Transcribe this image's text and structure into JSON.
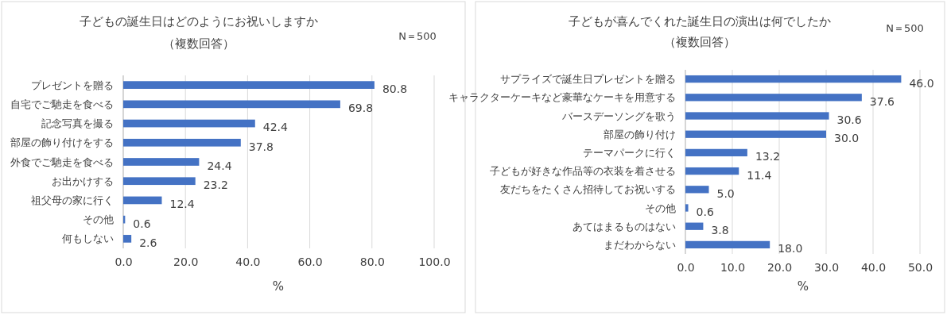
{
  "chart_data": [
    {
      "type": "bar",
      "orientation": "horizontal",
      "title": "子どもの誕生日はどのようにお祝いしますか",
      "subtitle": "（複数回答）",
      "xlabel": "%",
      "annotations": [
        "N＝500"
      ],
      "categories": [
        "プレゼントを贈る",
        "自宅でご馳走を食べる",
        "記念写真を撮る",
        "部屋の飾り付けをする",
        "外食でご馳走を食べる",
        "お出かけする",
        "祖父母の家に行く",
        "その他",
        "何もしない"
      ],
      "values": [
        80.8,
        69.8,
        42.4,
        37.8,
        24.4,
        23.2,
        12.4,
        0.6,
        2.6
      ],
      "value_labels": [
        "80.8",
        "69.8",
        "42.4",
        "37.8",
        "24.4",
        "23.2",
        "12.4",
        "0.6",
        "2.6"
      ],
      "color": "#4472c4",
      "xlim": [
        0,
        100
      ],
      "xticks": [
        {
          "value": 0,
          "label": "0.0"
        },
        {
          "value": 20,
          "label": "20.0"
        },
        {
          "value": 40,
          "label": "40.0"
        },
        {
          "value": 60,
          "label": "60.0"
        },
        {
          "value": 80,
          "label": "80.0"
        },
        {
          "value": 100,
          "label": "100.0"
        }
      ],
      "grid": "x"
    },
    {
      "type": "bar",
      "orientation": "horizontal",
      "title": "子どもが喜んでくれた誕生日の演出は何でしたか",
      "subtitle": "（複数回答）",
      "xlabel": "%",
      "annotations": [
        "N＝500"
      ],
      "categories": [
        "サプライズで誕生日プレゼントを贈る",
        "キャラクターケーキなど豪華なケーキを用意する",
        "バースデーソングを歌う",
        "部屋の飾り付け",
        "テーマパークに行く",
        "子どもが好きな作品等の衣装を着させる",
        "友だちをたくさん招待してお祝いする",
        "その他",
        "あてはまるものはない",
        "まだわからない"
      ],
      "values": [
        46.0,
        37.6,
        30.6,
        30.0,
        13.2,
        11.4,
        5.0,
        0.6,
        3.8,
        18.0
      ],
      "value_labels": [
        "46.0",
        "37.6",
        "30.6",
        "30.0",
        "13.2",
        "11.4",
        "5.0",
        "0.6",
        "3.8",
        "18.0"
      ],
      "color": "#4472c4",
      "xlim": [
        0,
        50
      ],
      "xticks": [
        {
          "value": 0,
          "label": "0.0"
        },
        {
          "value": 10,
          "label": "10.0"
        },
        {
          "value": 20,
          "label": "20.0"
        },
        {
          "value": 30,
          "label": "30.0"
        },
        {
          "value": 40,
          "label": "40.0"
        },
        {
          "value": 50,
          "label": "50.0"
        }
      ],
      "grid": "x"
    }
  ]
}
